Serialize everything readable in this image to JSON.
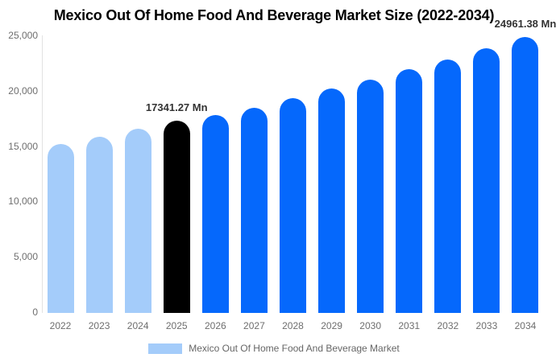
{
  "page": {
    "title": "Mexico Out Of Home Food And Beverage Market Size (2022-2034)"
  },
  "chart_data": {
    "type": "bar",
    "title": "Mexico Out Of Home Food And Beverage Market Size (2022-2034)",
    "unit": "Mn",
    "categories": [
      "2022",
      "2023",
      "2024",
      "2025",
      "2026",
      "2027",
      "2028",
      "2029",
      "2030",
      "2031",
      "2032",
      "2033",
      "2034"
    ],
    "values": [
      15250,
      15900,
      16650,
      17341.27,
      17900,
      18550,
      19400,
      20250,
      21100,
      22000,
      22900,
      23900,
      24961.38
    ],
    "bar_colors": [
      "#a4ccfa",
      "#a4ccfa",
      "#a4ccfa",
      "#000000",
      "#0568fc",
      "#0568fc",
      "#0568fc",
      "#0568fc",
      "#0568fc",
      "#0568fc",
      "#0568fc",
      "#0568fc",
      "#0568fc"
    ],
    "data_labels": [
      {
        "category": "2025",
        "text": "17341.27 Mn"
      },
      {
        "category": "2034",
        "text": "24961.38 Mn"
      }
    ],
    "ylim": [
      0,
      25000
    ],
    "yticks": [
      {
        "value": 0,
        "label": "0"
      },
      {
        "value": 5000,
        "label": "5,000"
      },
      {
        "value": 10000,
        "label": "10,000"
      },
      {
        "value": 15000,
        "label": "15,000"
      },
      {
        "value": 20000,
        "label": "20,000"
      },
      {
        "value": 25000,
        "label": "25,000"
      }
    ],
    "grid": false,
    "legend_position": "bottom"
  },
  "legend": {
    "label": "Mexico Out Of Home Food And Beverage Market",
    "swatch_color": "#a4ccfa"
  },
  "colors": {
    "background": "#ffffff",
    "axis_line": "#e2e2e2",
    "tick_text": "#6e6e6e",
    "data_label_text": "#333333",
    "historical_bar": "#a4ccfa",
    "current_year_bar": "#000000",
    "forecast_bar": "#0568fc"
  }
}
